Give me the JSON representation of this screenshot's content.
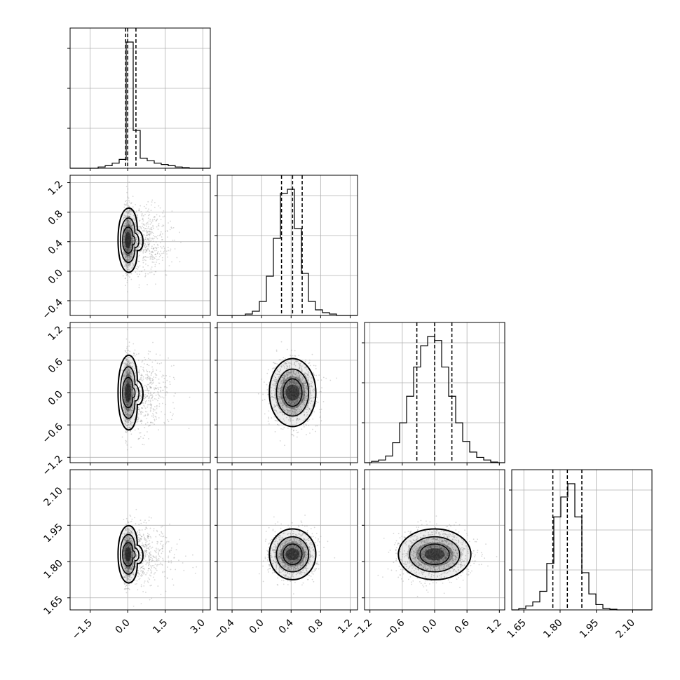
{
  "chart_data": {
    "type": "corner",
    "grid": true,
    "parameters": [
      {
        "index": 0,
        "range": [
          -2.3,
          3.3
        ],
        "ticks": [
          -1.5,
          0.0,
          1.5,
          3.0
        ],
        "tick_labels": [
          "−1.5",
          "0.0",
          "1.5",
          "3.0"
        ]
      },
      {
        "index": 1,
        "range": [
          -0.6,
          1.3
        ],
        "ticks": [
          -0.4,
          0.0,
          0.4,
          0.8,
          1.2
        ],
        "tick_labels": [
          "−0.4",
          "0.0",
          "0.4",
          "0.8",
          "1.2"
        ]
      },
      {
        "index": 2,
        "range": [
          -1.3,
          1.3
        ],
        "ticks": [
          -1.2,
          -0.6,
          0.0,
          0.6,
          1.2
        ],
        "tick_labels": [
          "−1.2",
          "−0.6",
          "0.0",
          "0.6",
          "1.2"
        ]
      },
      {
        "index": 3,
        "range": [
          1.6,
          2.18
        ],
        "ticks": [
          1.65,
          1.8,
          1.95,
          2.1
        ],
        "tick_labels": [
          "1.65",
          "1.80",
          "1.95",
          "2.10"
        ]
      }
    ],
    "histograms": [
      {
        "param": 0,
        "bin_edges_start": -2.3,
        "bin_width": 0.28,
        "counts": [
          0,
          0,
          0,
          0,
          1,
          2,
          4,
          7,
          100,
          30,
          8,
          6,
          4,
          3,
          2,
          1,
          0.5,
          0,
          0,
          0
        ],
        "quantiles": [
          -0.08,
          0.0,
          0.33
        ]
      },
      {
        "param": 1,
        "bin_edges_start": -0.6,
        "bin_width": 0.095,
        "counts": [
          0,
          0,
          0,
          0,
          1,
          3,
          10,
          28,
          55,
          87,
          90,
          62,
          30,
          10,
          4,
          2,
          1,
          0,
          0,
          0
        ],
        "quantiles": [
          0.27,
          0.42,
          0.55
        ]
      },
      {
        "param": 2,
        "bin_edges_start": -1.3,
        "bin_width": 0.13,
        "counts": [
          0,
          1,
          2,
          5,
          15,
          30,
          50,
          72,
          88,
          95,
          92,
          72,
          50,
          30,
          16,
          8,
          4,
          2,
          0.5,
          0
        ],
        "quantiles": [
          -0.33,
          0.0,
          0.32
        ]
      },
      {
        "param": 3,
        "bin_edges_start": 1.6,
        "bin_width": 0.029,
        "counts": [
          0,
          1,
          3,
          6,
          14,
          35,
          70,
          85,
          95,
          70,
          28,
          12,
          4,
          1,
          0.5,
          0,
          0,
          0,
          0,
          0
        ],
        "quantiles": [
          1.77,
          1.83,
          1.89
        ]
      }
    ],
    "scatter_2d": [
      {
        "x_param": 0,
        "y_param": 1,
        "center": [
          0.0,
          0.42
        ],
        "spread": [
          0.55,
          0.22
        ],
        "skew_x": 0.9
      },
      {
        "x_param": 0,
        "y_param": 2,
        "center": [
          0.0,
          0.0
        ],
        "spread": [
          0.55,
          0.35
        ],
        "skew_x": 0.9
      },
      {
        "x_param": 0,
        "y_param": 3,
        "center": [
          0.0,
          1.83
        ],
        "spread": [
          0.55,
          0.06
        ],
        "skew_x": 0.9
      },
      {
        "x_param": 1,
        "y_param": 2,
        "center": [
          0.42,
          0.0
        ],
        "spread": [
          0.15,
          0.3
        ],
        "skew_x": 0
      },
      {
        "x_param": 1,
        "y_param": 3,
        "center": [
          0.42,
          1.83
        ],
        "spread": [
          0.15,
          0.05
        ],
        "skew_x": 0
      },
      {
        "x_param": 2,
        "y_param": 3,
        "center": [
          0.0,
          1.83
        ],
        "spread": [
          0.32,
          0.05
        ],
        "skew_x": 0
      }
    ],
    "colors": {
      "hist": "#000000",
      "points": "#8c8c8c",
      "grid": "#b0b0b0",
      "density": "#000000"
    }
  }
}
